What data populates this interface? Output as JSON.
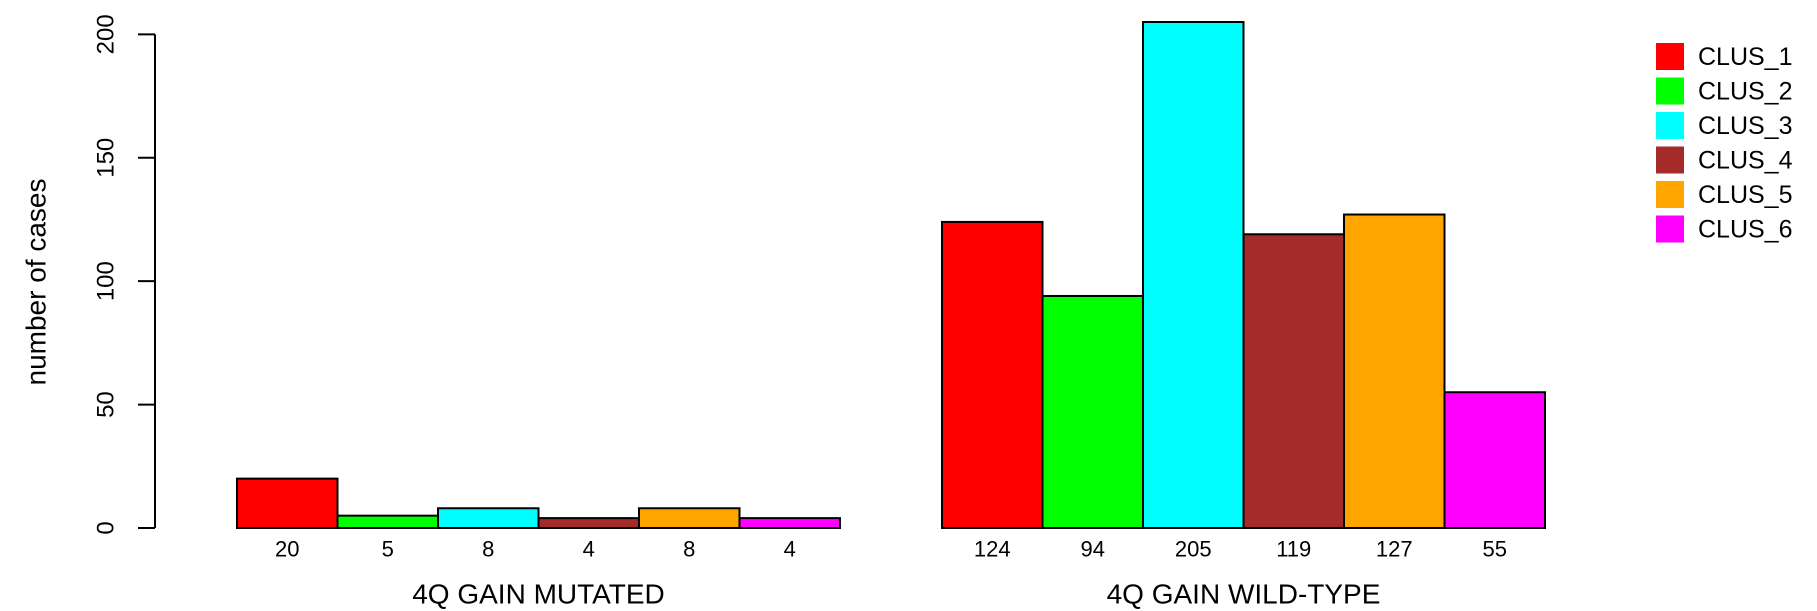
{
  "chart_data": {
    "type": "bar",
    "title": "",
    "xlabel": "",
    "ylabel": "number of cases",
    "ylim": [
      0,
      205
    ],
    "yticks": [
      0,
      50,
      100,
      150,
      200
    ],
    "grid": false,
    "legend_position": "top-right",
    "groups": [
      {
        "label": "4Q GAIN MUTATED",
        "values": [
          20,
          5,
          8,
          4,
          8,
          4
        ]
      },
      {
        "label": "4Q GAIN WILD-TYPE",
        "values": [
          124,
          94,
          205,
          119,
          127,
          55
        ]
      }
    ],
    "series": [
      {
        "name": "CLUS_1",
        "color": "#ff0000"
      },
      {
        "name": "CLUS_2",
        "color": "#00ff00"
      },
      {
        "name": "CLUS_3",
        "color": "#00ffff"
      },
      {
        "name": "CLUS_4",
        "color": "#a52a2a"
      },
      {
        "name": "CLUS_5",
        "color": "#ffa500"
      },
      {
        "name": "CLUS_6",
        "color": "#ff00ff"
      }
    ]
  }
}
